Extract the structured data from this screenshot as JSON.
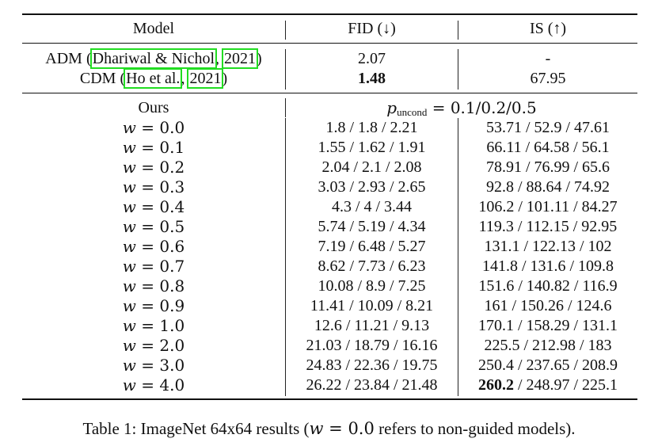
{
  "table": {
    "headers": {
      "model": "Model",
      "fid": "FID (↓)",
      "is": "IS (↑)"
    },
    "baselines": [
      {
        "model_prefix": "ADM (",
        "cite_author": "Dhariwal & Nichol",
        "cite_sep": ", ",
        "cite_year": "2021",
        "model_suffix": ")",
        "fid": "2.07",
        "fid_bold": false,
        "is": "-"
      },
      {
        "model_prefix": "CDM (",
        "cite_author": "Ho et al.",
        "cite_sep": ", ",
        "cite_year": "2021",
        "model_suffix": ")",
        "fid": "1.48",
        "fid_bold": true,
        "is": "67.95"
      }
    ],
    "ours": {
      "label": "Ours",
      "p_symbol": "p",
      "p_subscript": "uncond",
      "p_values": " = 0.1/0.2/0.5",
      "rows": [
        {
          "w_var": "w",
          "w_eq": " = ",
          "w_val": "0.0",
          "fid": "1.8 / 1.8 / 2.21",
          "is": "53.71 / 52.9 / 47.61"
        },
        {
          "w_var": "w",
          "w_eq": " = ",
          "w_val": "0.1",
          "fid": "1.55 / 1.62 / 1.91",
          "is": "66.11 / 64.58 / 56.1"
        },
        {
          "w_var": "w",
          "w_eq": " = ",
          "w_val": "0.2",
          "fid": "2.04 / 2.1 / 2.08",
          "is": "78.91 / 76.99 / 65.6"
        },
        {
          "w_var": "w",
          "w_eq": " = ",
          "w_val": "0.3",
          "fid": "3.03 / 2.93 / 2.65",
          "is": "92.8 / 88.64 / 74.92"
        },
        {
          "w_var": "w",
          "w_eq": " = ",
          "w_val": "0.4",
          "fid": "4.3 / 4 / 3.44",
          "is": "106.2 / 101.11 / 84.27"
        },
        {
          "w_var": "w",
          "w_eq": " = ",
          "w_val": "0.5",
          "fid": "5.74 / 5.19 / 4.34",
          "is": "119.3 / 112.15 / 92.95"
        },
        {
          "w_var": "w",
          "w_eq": " = ",
          "w_val": "0.6",
          "fid": "7.19 / 6.48 / 5.27",
          "is": "131.1 / 122.13 / 102"
        },
        {
          "w_var": "w",
          "w_eq": " = ",
          "w_val": "0.7",
          "fid": "8.62 / 7.73 / 6.23",
          "is": "141.8 / 131.6 / 109.8"
        },
        {
          "w_var": "w",
          "w_eq": " = ",
          "w_val": "0.8",
          "fid": "10.08 / 8.9 / 7.25",
          "is": "151.6 / 140.82 / 116.9"
        },
        {
          "w_var": "w",
          "w_eq": " = ",
          "w_val": "0.9",
          "fid": "11.41 / 10.09 / 8.21",
          "is": "161 / 150.26 / 124.6"
        },
        {
          "w_var": "w",
          "w_eq": " = ",
          "w_val": "1.0",
          "fid": "12.6 / 11.21 / 9.13",
          "is": "170.1 / 158.29 / 131.1"
        },
        {
          "w_var": "w",
          "w_eq": " = ",
          "w_val": "2.0",
          "fid": "21.03 / 18.79 / 16.16",
          "is": "225.5 / 212.98 / 183"
        },
        {
          "w_var": "w",
          "w_eq": " = ",
          "w_val": "3.0",
          "fid": "24.83 / 22.36 / 19.75",
          "is": "250.4 / 237.65 / 208.9"
        },
        {
          "w_var": "w",
          "w_eq": " = ",
          "w_val": "4.0",
          "fid": "26.22 / 23.84 / 21.48",
          "is_bold_part": "260.2",
          "is_rest": " / 248.97 / 225.1"
        }
      ]
    }
  },
  "caption": {
    "prefix": "Table 1: ImageNet 64x64 results (",
    "var": "w",
    "eq": " = 0.0",
    "suffix": " refers to non-guided models)."
  },
  "colors": {
    "text": "#111111",
    "citation_box": "#22dd22"
  }
}
